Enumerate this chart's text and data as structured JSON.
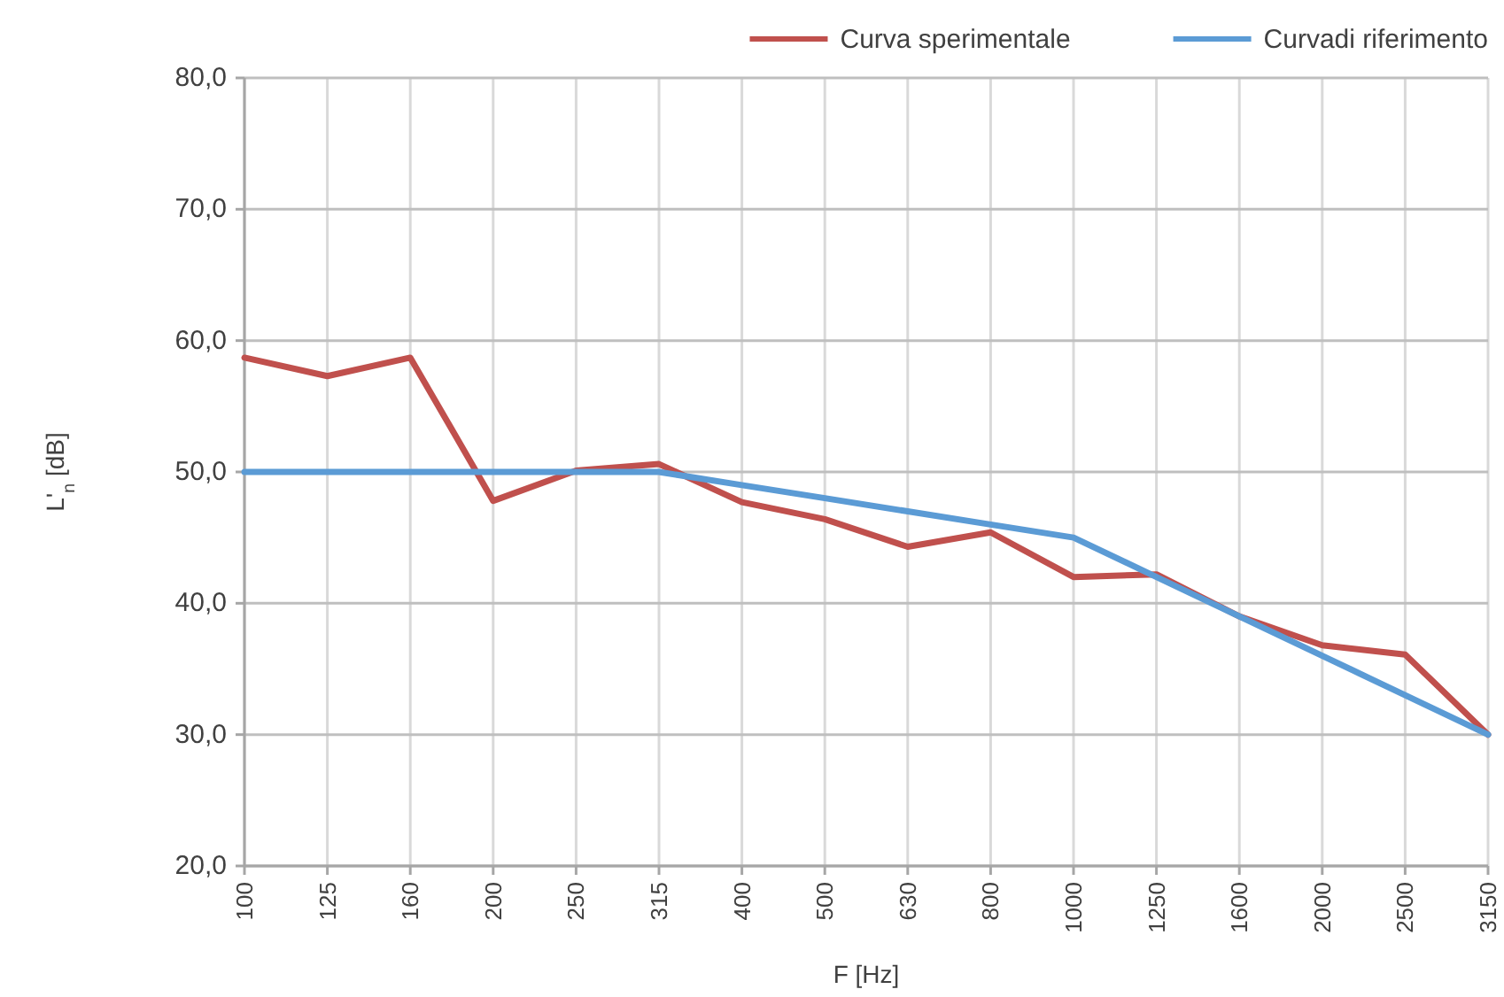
{
  "chart_data": {
    "type": "line",
    "xlabel": "F [Hz]",
    "ylabel": "L'$_{n}$ [dB]",
    "categories": [
      "100",
      "125",
      "160",
      "200",
      "250",
      "315",
      "400",
      "500",
      "630",
      "800",
      "1000",
      "1250",
      "1600",
      "2000",
      "2500",
      "3150"
    ],
    "series": [
      {
        "name": "Curva sperimentale",
        "color": "#c0504d",
        "values": [
          58.7,
          57.3,
          58.7,
          47.8,
          50.1,
          50.6,
          47.7,
          46.4,
          44.3,
          45.4,
          42.0,
          42.2,
          39.0,
          36.8,
          36.1,
          30.0
        ]
      },
      {
        "name": "Curvadi riferimento",
        "color": "#5b9bd5",
        "values": [
          50,
          50,
          50,
          50,
          50,
          50,
          49,
          48,
          47,
          46,
          45,
          42,
          39,
          36,
          33,
          30
        ]
      }
    ],
    "ylim": [
      20,
      80
    ],
    "yticks": [
      {
        "value": 20,
        "label": "20,0"
      },
      {
        "value": 30,
        "label": "30,0"
      },
      {
        "value": 40,
        "label": "40,0"
      },
      {
        "value": 50,
        "label": "50,0"
      },
      {
        "value": 60,
        "label": "60,0"
      },
      {
        "value": 70,
        "label": "70,0"
      },
      {
        "value": 80,
        "label": "80,0"
      }
    ],
    "grid": true,
    "legend": "top right"
  }
}
